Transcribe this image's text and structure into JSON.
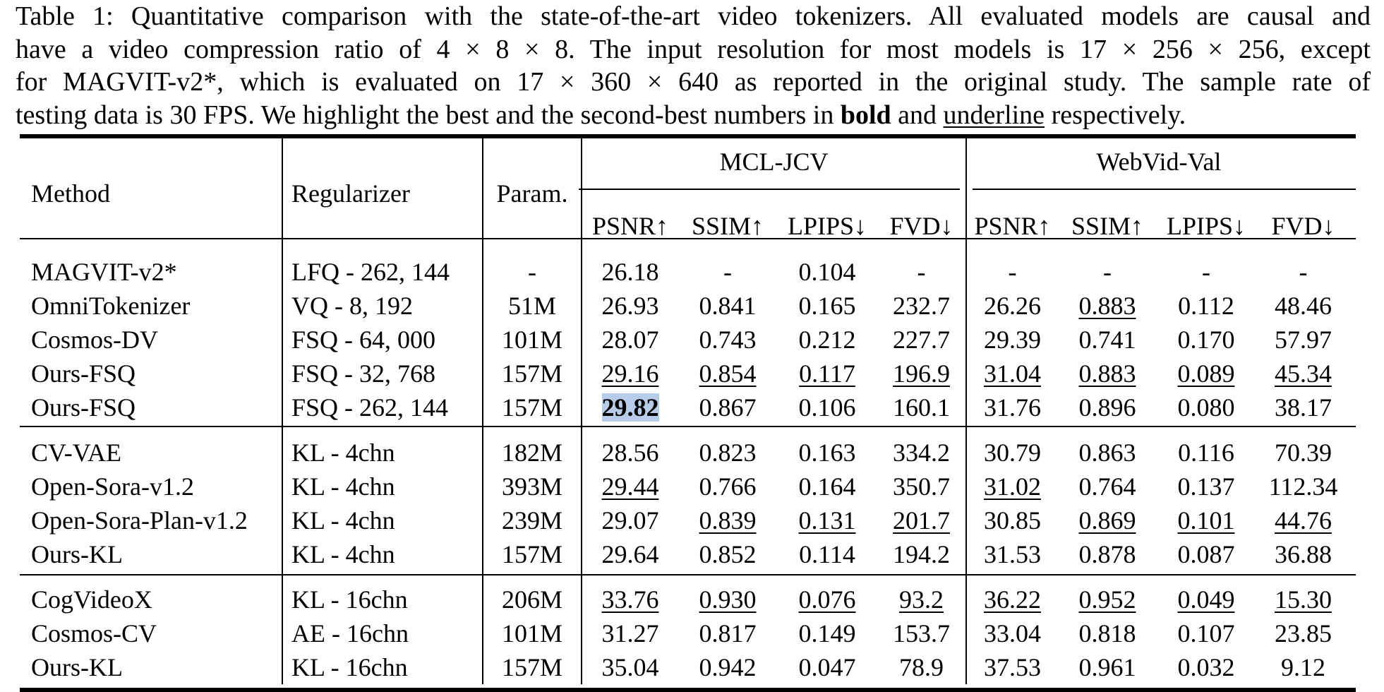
{
  "caption": {
    "line1": "Table 1: Quantitative comparison with the state-of-the-art video tokenizers. All evaluated models are causal and",
    "line2": "have a video compression ratio of 4 × 8 × 8. The input resolution for most models is 17 × 256 × 256, except",
    "line3": "for MAGVIT-v2*, which is evaluated on 17 × 360 × 640 as reported in the original study. The sample rate of",
    "line4_a": "testing data is 30 FPS. We highlight the best and the second-best numbers in",
    "line4_bold": "bold",
    "line4_b": "and",
    "line4_under": "underline",
    "line4_c": "respectively."
  },
  "table": {
    "headers": {
      "method": "Method",
      "regularizer": "Regularizer",
      "param": "Param.",
      "group1": "MCL-JCV",
      "group2": "WebVid-Val",
      "metrics": [
        "PSNR↑",
        "SSIM↑",
        "LPIPS↓",
        "FVD↓",
        "PSNR↑",
        "SSIM↑",
        "LPIPS↓",
        "FVD↓"
      ]
    },
    "groups": [
      [
        {
          "method": "MAGVIT-v2*",
          "reg": "LFQ - 262, 144",
          "param": "-",
          "vals": [
            "26.18",
            "-",
            "0.104",
            "-",
            "-",
            "-",
            "-",
            "-"
          ],
          "style": [
            "",
            "",
            "",
            "",
            "",
            "",
            "",
            ""
          ]
        },
        {
          "method": "OmniTokenizer",
          "reg": "VQ  - 8, 192",
          "param": "51M",
          "vals": [
            "26.93",
            "0.841",
            "0.165",
            "232.7",
            "26.26",
            "0.883",
            "0.112",
            "48.46"
          ],
          "style": [
            "",
            "",
            "",
            "",
            "",
            "u",
            "",
            ""
          ]
        },
        {
          "method": "Cosmos-DV",
          "reg": "FSQ - 64, 000",
          "param": "101M",
          "vals": [
            "28.07",
            "0.743",
            "0.212",
            "227.7",
            "29.39",
            "0.741",
            "0.170",
            "57.97"
          ],
          "style": [
            "",
            "",
            "",
            "",
            "",
            "",
            "",
            ""
          ]
        },
        {
          "method": "Ours-FSQ",
          "reg": "FSQ - 32, 768",
          "param": "157M",
          "vals": [
            "29.16",
            "0.854",
            "0.117",
            "196.9",
            "31.04",
            "0.883",
            "0.089",
            "45.34"
          ],
          "style": [
            "u",
            "u",
            "u",
            "u",
            "u",
            "u",
            "u",
            "u"
          ]
        },
        {
          "method": "Ours-FSQ",
          "reg": "FSQ - 262, 144",
          "param": "157M",
          "vals": [
            "29.82",
            "0.867",
            "0.106",
            "160.1",
            "31.76",
            "0.896",
            "0.080",
            "38.17"
          ],
          "style": [
            "hl",
            "b",
            "b",
            "b",
            "b",
            "b",
            "b",
            "b"
          ]
        }
      ],
      [
        {
          "method": "CV-VAE",
          "reg": "KL - 4chn",
          "param": "182M",
          "vals": [
            "28.56",
            "0.823",
            "0.163",
            "334.2",
            "30.79",
            "0.863",
            "0.116",
            "70.39"
          ],
          "style": [
            "",
            "",
            "",
            "",
            "",
            "",
            "",
            ""
          ]
        },
        {
          "method": "Open-Sora-v1.2",
          "reg": "KL - 4chn",
          "param": "393M",
          "vals": [
            "29.44",
            "0.766",
            "0.164",
            "350.7",
            "31.02",
            "0.764",
            "0.137",
            "112.34"
          ],
          "style": [
            "u",
            "",
            "",
            "",
            "u",
            "",
            "",
            ""
          ]
        },
        {
          "method": "Open-Sora-Plan-v1.2",
          "reg": "KL - 4chn",
          "param": "239M",
          "vals": [
            "29.07",
            "0.839",
            "0.131",
            "201.7",
            "30.85",
            "0.869",
            "0.101",
            "44.76"
          ],
          "style": [
            "",
            "u",
            "u",
            "u",
            "",
            "u",
            "u",
            "u"
          ]
        },
        {
          "method": "Ours-KL",
          "reg": "KL - 4chn",
          "param": "157M",
          "vals": [
            "29.64",
            "0.852",
            "0.114",
            "194.2",
            "31.53",
            "0.878",
            "0.087",
            "36.88"
          ],
          "style": [
            "b",
            "b",
            "b",
            "b",
            "b",
            "b",
            "b",
            "b"
          ]
        }
      ],
      [
        {
          "method": "CogVideoX",
          "reg": "KL - 16chn",
          "param": "206M",
          "vals": [
            "33.76",
            "0.930",
            "0.076",
            "93.2",
            "36.22",
            "0.952",
            "0.049",
            "15.30"
          ],
          "style": [
            "u",
            "u",
            "u",
            "u",
            "u",
            "u",
            "u",
            "u"
          ]
        },
        {
          "method": "Cosmos-CV",
          "reg": "AE - 16chn",
          "param": "101M",
          "vals": [
            "31.27",
            "0.817",
            "0.149",
            "153.7",
            "33.04",
            "0.818",
            "0.107",
            "23.85"
          ],
          "style": [
            "",
            "",
            "",
            "",
            "",
            "",
            "",
            ""
          ]
        },
        {
          "method": "Ours-KL",
          "reg": "KL - 16chn",
          "param": "157M",
          "vals": [
            "35.04",
            "0.942",
            "0.047",
            "78.9",
            "37.53",
            "0.961",
            "0.032",
            "9.12"
          ],
          "style": [
            "b",
            "b",
            "b",
            "b",
            "b",
            "b",
            "b",
            "b"
          ]
        }
      ]
    ]
  }
}
